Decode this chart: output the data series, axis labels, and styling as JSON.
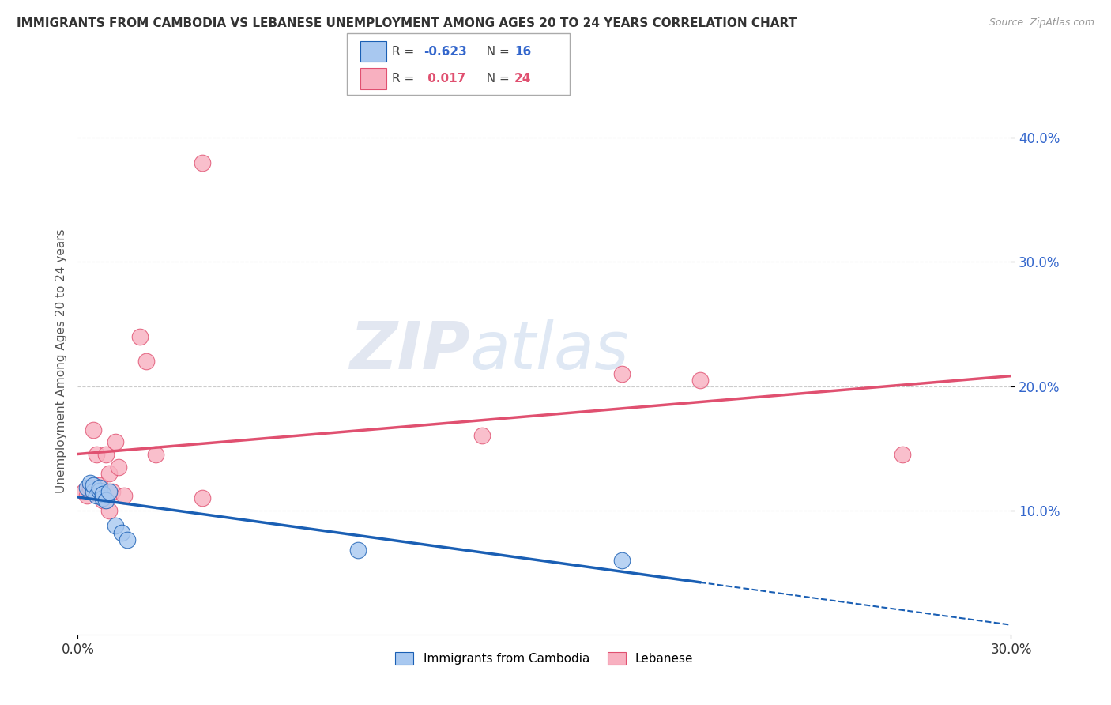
{
  "title": "IMMIGRANTS FROM CAMBODIA VS LEBANESE UNEMPLOYMENT AMONG AGES 20 TO 24 YEARS CORRELATION CHART",
  "source": "Source: ZipAtlas.com",
  "ylabel": "Unemployment Among Ages 20 to 24 years",
  "xlim": [
    0.0,
    0.3
  ],
  "ylim": [
    0.0,
    0.44
  ],
  "yticks": [
    0.1,
    0.2,
    0.3,
    0.4
  ],
  "ytick_labels": [
    "10.0%",
    "20.0%",
    "30.0%",
    "40.0%"
  ],
  "legend_blue_label": "Immigrants from Cambodia",
  "legend_pink_label": "Lebanese",
  "R_blue": -0.623,
  "N_blue": 16,
  "R_pink": 0.017,
  "N_pink": 24,
  "blue_color": "#a8c8f0",
  "pink_color": "#f8b0c0",
  "blue_line_color": "#1a5fb4",
  "pink_line_color": "#e05070",
  "watermark": "ZIPatlas",
  "blue_scatter_x": [
    0.003,
    0.004,
    0.005,
    0.005,
    0.006,
    0.007,
    0.007,
    0.008,
    0.008,
    0.009,
    0.01,
    0.012,
    0.014,
    0.016,
    0.09,
    0.175
  ],
  "blue_scatter_y": [
    0.118,
    0.122,
    0.115,
    0.12,
    0.112,
    0.116,
    0.118,
    0.11,
    0.113,
    0.108,
    0.115,
    0.088,
    0.082,
    0.076,
    0.068,
    0.06
  ],
  "pink_scatter_x": [
    0.002,
    0.003,
    0.004,
    0.005,
    0.005,
    0.006,
    0.007,
    0.008,
    0.009,
    0.01,
    0.01,
    0.011,
    0.012,
    0.013,
    0.015,
    0.02,
    0.022,
    0.025,
    0.04,
    0.13,
    0.175,
    0.2,
    0.265,
    0.04
  ],
  "pink_scatter_y": [
    0.115,
    0.112,
    0.118,
    0.115,
    0.165,
    0.145,
    0.12,
    0.108,
    0.145,
    0.13,
    0.1,
    0.115,
    0.155,
    0.135,
    0.112,
    0.24,
    0.22,
    0.145,
    0.11,
    0.16,
    0.21,
    0.205,
    0.145,
    0.38
  ],
  "background_color": "#ffffff",
  "grid_color": "#cccccc"
}
